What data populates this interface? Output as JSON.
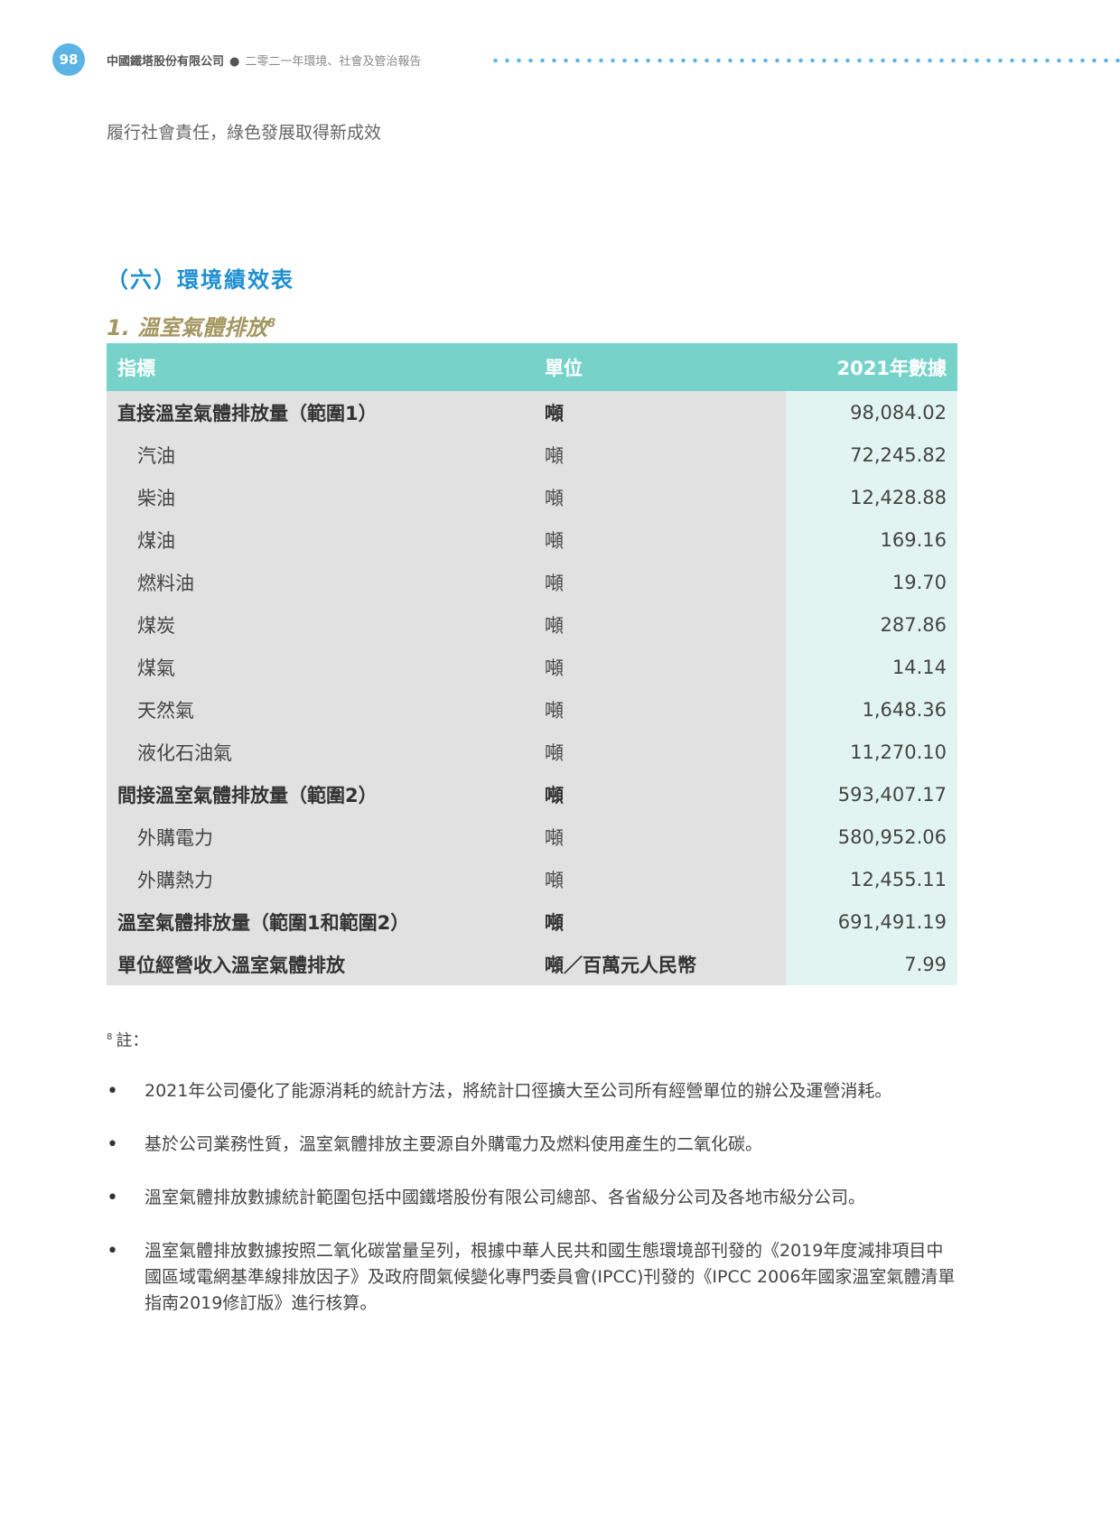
{
  "header": {
    "page_number": "98",
    "company": "中國鐵塔股份有限公司",
    "report": "二零二一年環境、社會及管治報告",
    "accent": "#5bb4e5"
  },
  "section": "履行社會責任，綠色發展取得新成效",
  "heading": "（六）環境績效表",
  "subheading": {
    "text": "1.  溫室氣體排放",
    "note": "8"
  },
  "table": {
    "columns": [
      "指標",
      "單位",
      "2021年數據"
    ],
    "rows": [
      {
        "name": "直接溫室氣體排放量（範圍1）",
        "unit": "噸",
        "value": "98,084.02",
        "bold": true
      },
      {
        "name": "汽油",
        "unit": "噸",
        "value": "72,245.82"
      },
      {
        "name": "柴油",
        "unit": "噸",
        "value": "12,428.88"
      },
      {
        "name": "煤油",
        "unit": "噸",
        "value": "169.16"
      },
      {
        "name": "燃料油",
        "unit": "噸",
        "value": "19.70"
      },
      {
        "name": "煤炭",
        "unit": "噸",
        "value": "287.86"
      },
      {
        "name": "煤氣",
        "unit": "噸",
        "value": "14.14"
      },
      {
        "name": "天然氣",
        "unit": "噸",
        "value": "1,648.36"
      },
      {
        "name": "液化石油氣",
        "unit": "噸",
        "value": "11,270.10"
      },
      {
        "name": "間接溫室氣體排放量（範圍2）",
        "unit": "噸",
        "value": "593,407.17",
        "bold": true
      },
      {
        "name": "外購電力",
        "unit": "噸",
        "value": "580,952.06"
      },
      {
        "name": "外購熱力",
        "unit": "噸",
        "value": "12,455.11"
      },
      {
        "name": "溫室氣體排放量（範圍1和範圍2）",
        "unit": "噸",
        "value": "691,491.19",
        "bold": true
      },
      {
        "name": "單位經營收入溫室氣體排放",
        "unit": "噸／百萬元人民幣",
        "value": "7.99",
        "bold": true
      }
    ]
  },
  "footnote": {
    "mark": "8",
    "label": "註：",
    "items": [
      "2021年公司優化了能源消耗的統計方法，將統計口徑擴大至公司所有經營單位的辦公及運營消耗。",
      "基於公司業務性質，溫室氣體排放主要源自外購電力及燃料使用產生的二氧化碳。",
      "溫室氣體排放數據統計範圍包括中國鐵塔股份有限公司總部、各省級分公司及各地市級分公司。",
      "溫室氣體排放數據按照二氧化碳當量呈列，根據中華人民共和國生態環境部刊發的《2019年度減排項目中國區域電網基準線排放因子》及政府間氣候變化專門委員會(IPCC)刊發的《IPCC 2006年國家溫室氣體清單指南2019修訂版》進行核算。"
    ]
  }
}
